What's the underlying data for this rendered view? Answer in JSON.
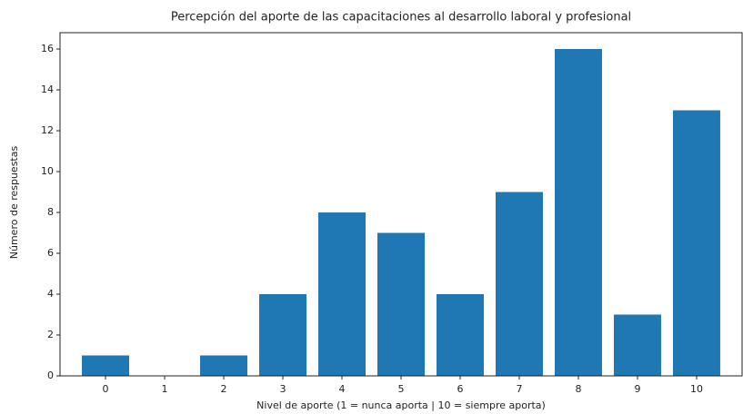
{
  "chart_data": {
    "type": "bar",
    "title": "Percepción del aporte de las capacitaciones al desarrollo laboral y profesional",
    "x_label": "Nivel de aporte (1 = nunca aporta | 10 = siempre aporta)",
    "y_label": "Número de respuestas",
    "x": [
      0,
      1,
      2,
      3,
      4,
      5,
      6,
      7,
      8,
      9,
      10
    ],
    "values": [
      1,
      0,
      1,
      4,
      8,
      7,
      4,
      9,
      16,
      3,
      13
    ],
    "color": "#1f77b4",
    "xlim": [
      -0.77,
      10.77
    ],
    "xticks": [
      0,
      1,
      2,
      3,
      4,
      5,
      6,
      7,
      8,
      9,
      10
    ],
    "ylim": [
      0,
      16.8
    ],
    "yticks": [
      0,
      2,
      4,
      6,
      8,
      10,
      12,
      14,
      16
    ],
    "grid": false
  }
}
